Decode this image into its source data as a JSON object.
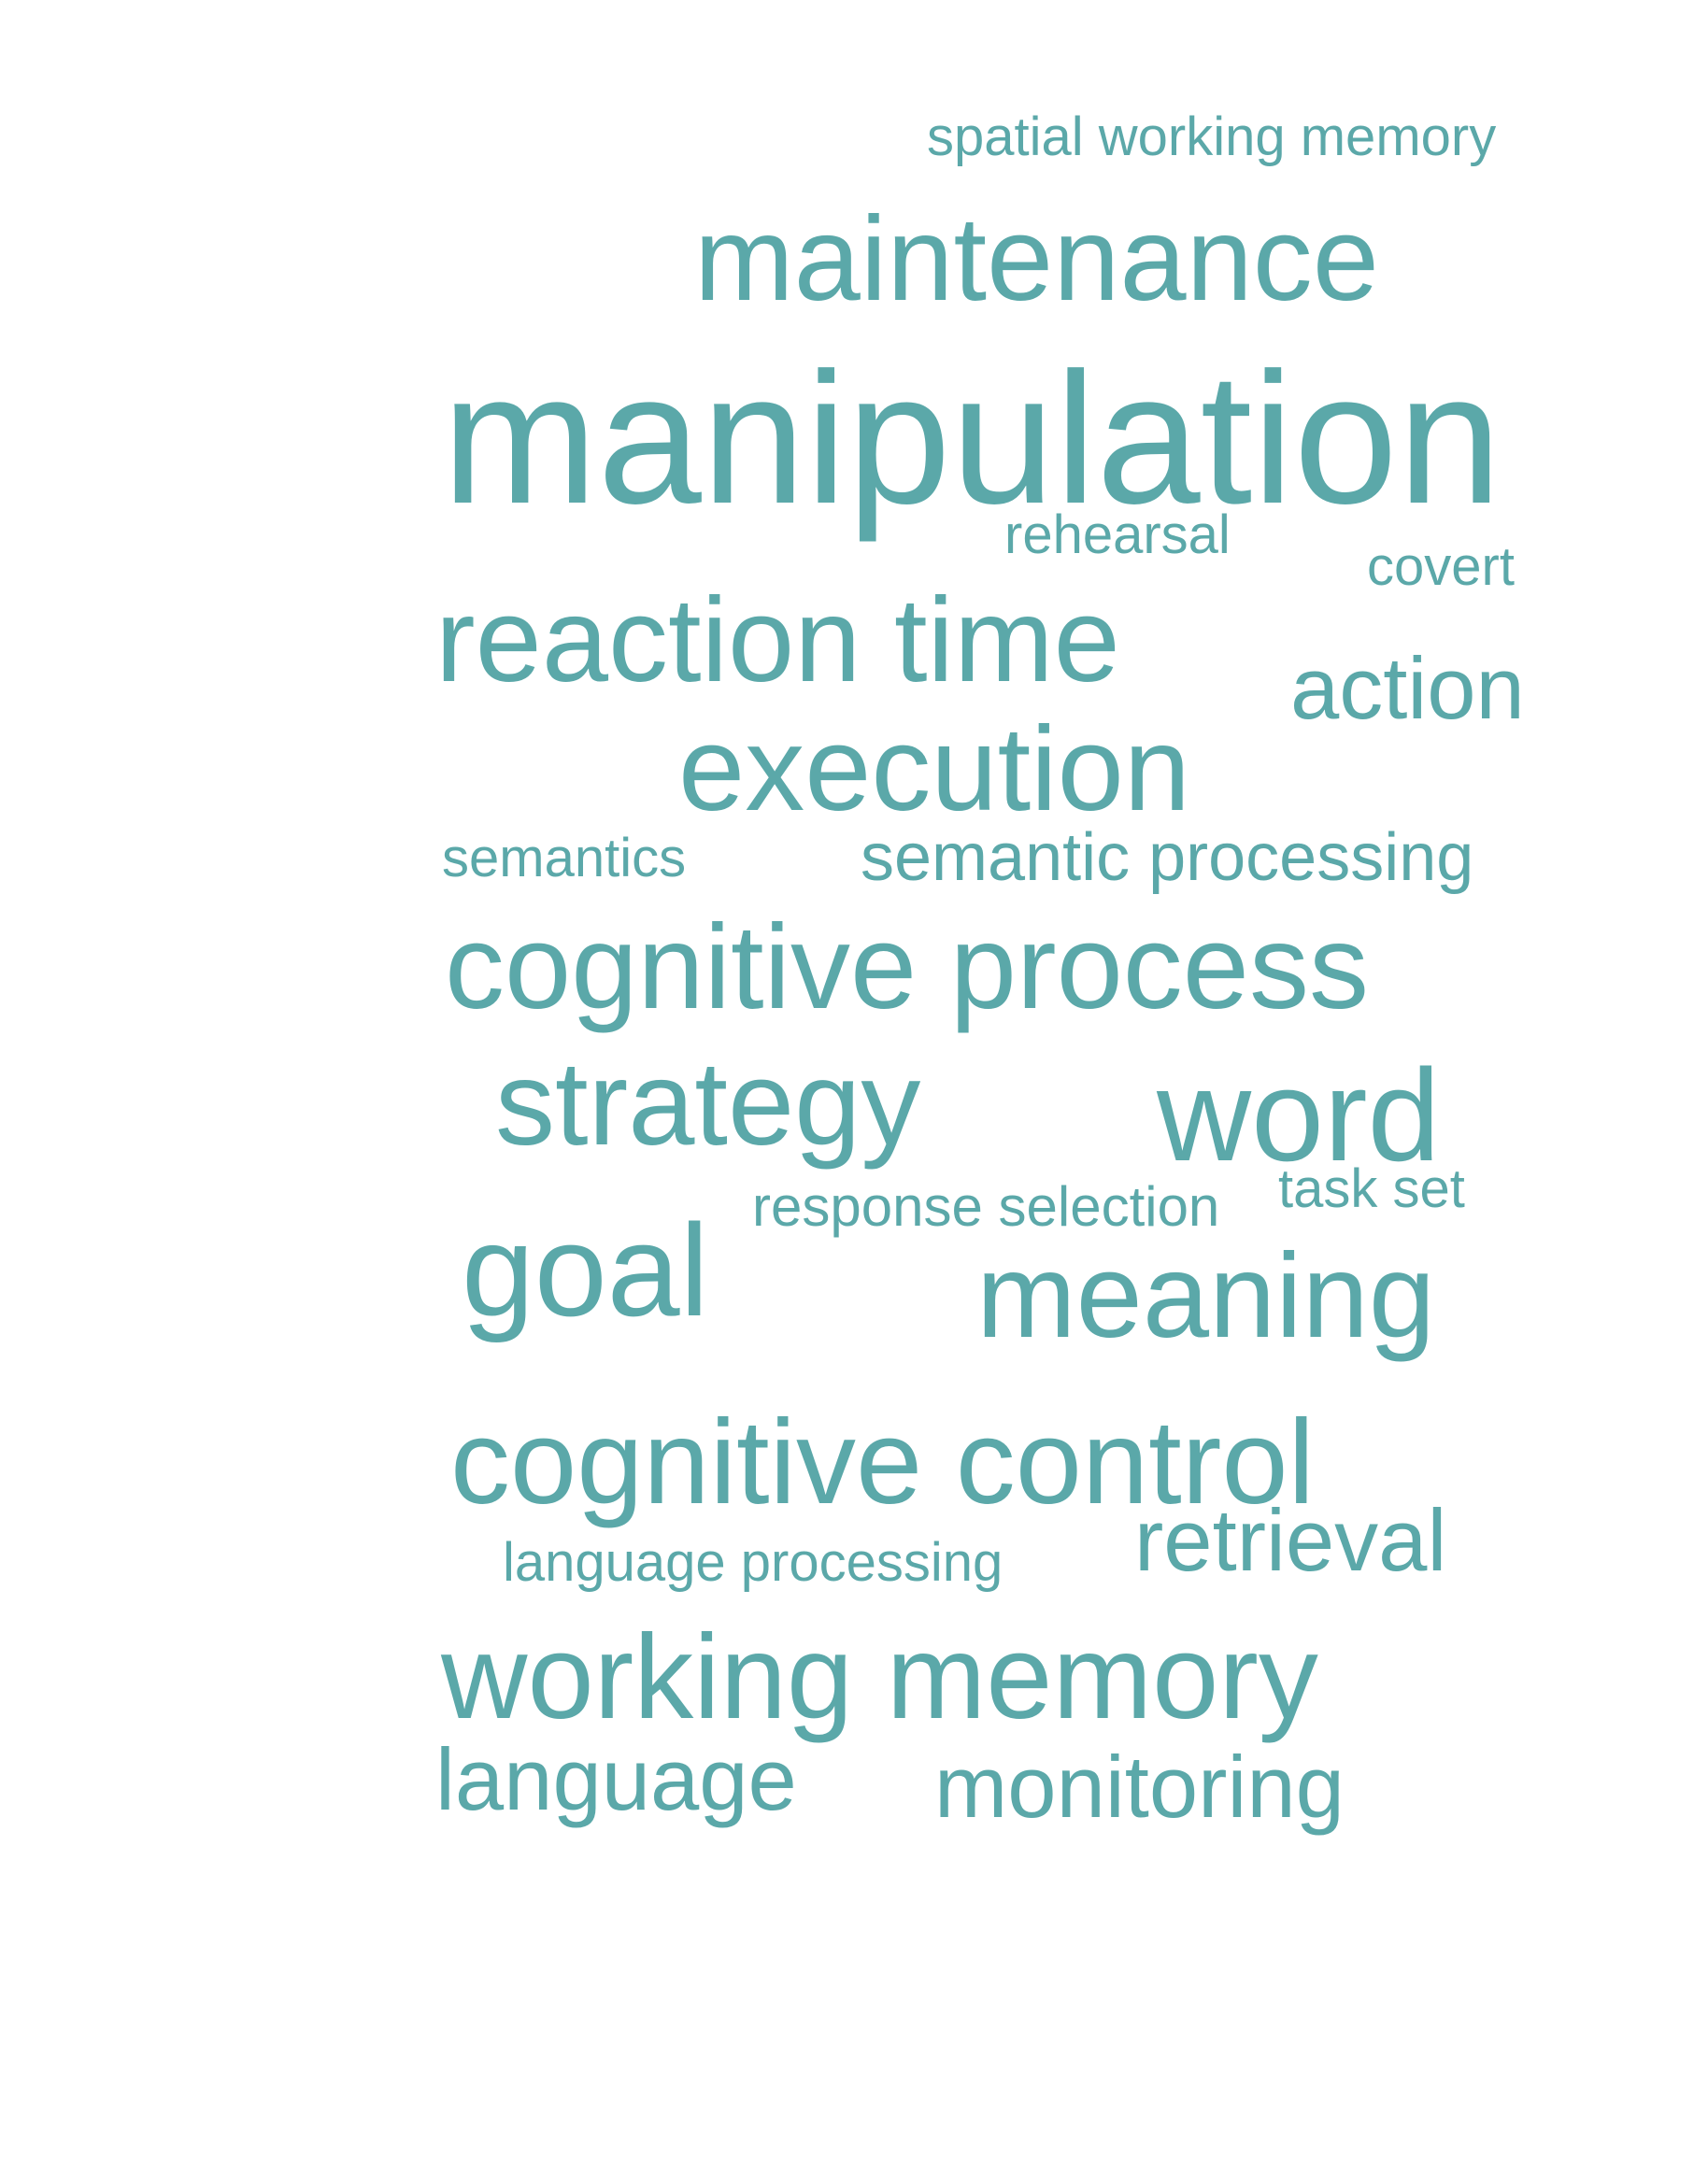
{
  "word_color": "#5ba8a9",
  "background_color": "#ffffff",
  "words": [
    {
      "text": "spatial working memory"
    },
    {
      "text": "maintenance"
    },
    {
      "text": "manipulation"
    },
    {
      "text": "rehearsal"
    },
    {
      "text": "covert"
    },
    {
      "text": "reaction time"
    },
    {
      "text": "action"
    },
    {
      "text": "execution"
    },
    {
      "text": "semantics"
    },
    {
      "text": "semantic processing"
    },
    {
      "text": "cognitive process"
    },
    {
      "text": "strategy"
    },
    {
      "text": "word"
    },
    {
      "text": "response selection"
    },
    {
      "text": "task set"
    },
    {
      "text": "goal"
    },
    {
      "text": "meaning"
    },
    {
      "text": "cognitive control"
    },
    {
      "text": "language processing"
    },
    {
      "text": "retrieval"
    },
    {
      "text": "working memory"
    },
    {
      "text": "language"
    },
    {
      "text": "monitoring"
    }
  ]
}
